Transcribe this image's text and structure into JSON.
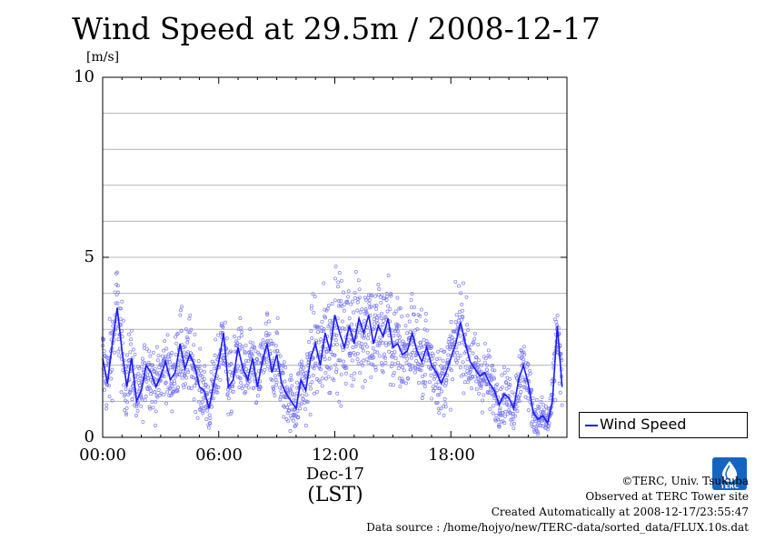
{
  "chart_data": {
    "type": "scatter",
    "title": "Wind Speed at 29.5m / 2008-12-17",
    "ylabel": "[m/s]",
    "xlabel": "Dec-17",
    "x_timezone_label": "(LST)",
    "ylim": [
      0,
      10
    ],
    "xlim_hours": [
      0,
      24
    ],
    "y_ticks": [
      "0",
      "5",
      "10"
    ],
    "x_ticks": [
      "00:00",
      "06:00",
      "12:00",
      "18:00"
    ],
    "grid": true,
    "legend_position": "right-bottom",
    "series": [
      {
        "name": "Wind Speed",
        "color": "#1a1aff",
        "line_hours": [
          0.0,
          0.25,
          0.5,
          0.75,
          1.0,
          1.25,
          1.5,
          1.75,
          2.0,
          2.25,
          2.5,
          2.75,
          3.0,
          3.25,
          3.5,
          3.75,
          4.0,
          4.25,
          4.5,
          4.75,
          5.0,
          5.25,
          5.5,
          5.75,
          6.0,
          6.25,
          6.5,
          6.75,
          7.0,
          7.25,
          7.5,
          7.75,
          8.0,
          8.25,
          8.5,
          8.75,
          9.0,
          9.25,
          9.5,
          9.75,
          10.0,
          10.25,
          10.5,
          10.75,
          11.0,
          11.25,
          11.5,
          11.75,
          12.0,
          12.25,
          12.5,
          12.75,
          13.0,
          13.25,
          13.5,
          13.75,
          14.0,
          14.25,
          14.5,
          14.75,
          15.0,
          15.25,
          15.5,
          15.75,
          16.0,
          16.25,
          16.5,
          16.75,
          17.0,
          17.25,
          17.5,
          17.75,
          18.0,
          18.25,
          18.5,
          18.75,
          19.0,
          19.25,
          19.5,
          19.75,
          20.0,
          20.25,
          20.5,
          20.75,
          21.0,
          21.25,
          21.5,
          21.75,
          22.0,
          22.25,
          22.5,
          22.75,
          23.0,
          23.25,
          23.5,
          23.75
        ],
        "line_values": [
          2.2,
          1.5,
          2.6,
          3.6,
          2.4,
          1.4,
          2.2,
          1.0,
          1.3,
          2.0,
          1.8,
          1.4,
          1.7,
          2.1,
          1.6,
          1.8,
          2.6,
          1.9,
          2.3,
          2.0,
          1.4,
          1.3,
          0.8,
          1.5,
          2.1,
          2.9,
          1.4,
          1.6,
          2.5,
          1.9,
          1.6,
          2.2,
          1.4,
          2.1,
          2.6,
          1.8,
          2.3,
          1.5,
          1.2,
          1.0,
          0.8,
          1.6,
          1.3,
          2.2,
          2.6,
          2.0,
          2.9,
          2.4,
          3.4,
          2.9,
          2.5,
          3.1,
          2.6,
          3.3,
          2.9,
          3.4,
          2.6,
          3.1,
          2.8,
          3.3,
          2.5,
          2.6,
          2.3,
          2.4,
          2.9,
          2.4,
          2.1,
          2.5,
          2.0,
          1.8,
          1.5,
          1.8,
          2.2,
          2.6,
          3.2,
          2.6,
          2.1,
          1.9,
          1.7,
          1.8,
          1.5,
          1.3,
          0.9,
          1.2,
          1.1,
          0.8,
          1.6,
          2.0,
          1.5,
          0.7,
          0.5,
          0.6,
          0.4,
          1.0,
          3.1,
          1.4
        ],
        "point_spread": [
          0.9,
          0.9,
          1.0,
          1.2,
          1.0,
          0.8,
          0.9,
          0.7,
          0.7,
          0.8,
          0.8,
          0.7,
          0.7,
          0.8,
          0.7,
          0.8,
          0.9,
          0.8,
          0.9,
          0.8,
          0.7,
          0.7,
          0.6,
          0.7,
          0.8,
          0.9,
          0.7,
          0.7,
          0.9,
          0.8,
          0.7,
          0.8,
          0.7,
          0.8,
          0.9,
          0.8,
          0.8,
          0.7,
          0.7,
          0.6,
          0.6,
          0.8,
          0.8,
          1.1,
          1.2,
          1.1,
          1.3,
          1.2,
          1.4,
          1.3,
          1.2,
          1.3,
          1.2,
          1.4,
          1.3,
          1.4,
          1.2,
          1.3,
          1.2,
          1.3,
          1.1,
          1.1,
          1.0,
          1.0,
          1.1,
          1.0,
          0.9,
          1.0,
          0.9,
          0.8,
          0.8,
          0.8,
          0.9,
          1.0,
          1.1,
          1.0,
          0.9,
          0.8,
          0.8,
          0.8,
          0.7,
          0.6,
          0.5,
          0.6,
          0.6,
          0.5,
          0.7,
          0.7,
          0.6,
          0.5,
          0.4,
          0.4,
          0.4,
          0.6,
          0.9,
          0.7
        ]
      }
    ]
  },
  "footer": {
    "copyright": "©TERC, Univ. Tsukuba",
    "observed": "Observed at TERC Tower site",
    "created": "Created Automatically at 2008-12-17/23:55:47",
    "source": "Data source : /home/hojyo/new/TERC-data/sorted_data/FLUX.10s.dat",
    "logo_text": "TERC"
  }
}
